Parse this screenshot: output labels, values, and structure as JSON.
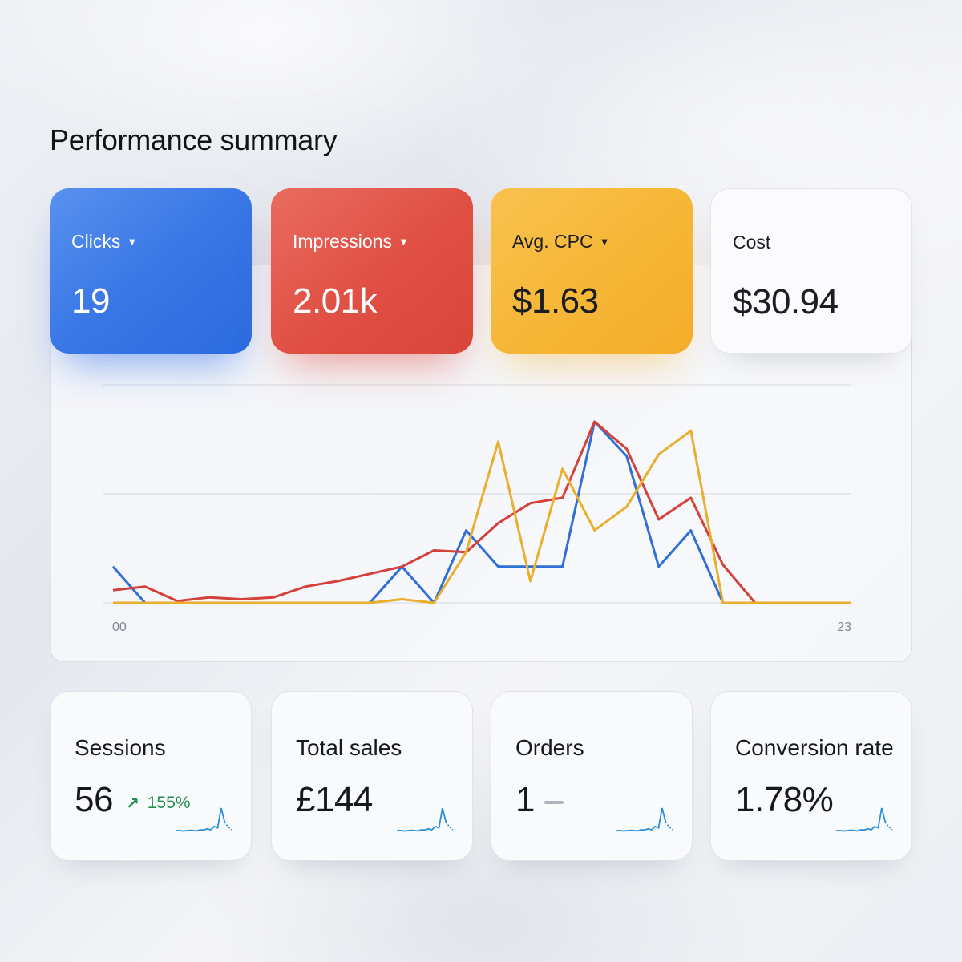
{
  "page": {
    "title": "Performance summary"
  },
  "metrics": [
    {
      "label": "Clicks",
      "value": "19",
      "color": "#3a77e6",
      "has_dropdown": true
    },
    {
      "label": "Impressions",
      "value": "2.01k",
      "color": "#e04f43",
      "has_dropdown": true
    },
    {
      "label": "Avg. CPC",
      "value": "$1.63",
      "color": "#f6b636",
      "has_dropdown": true
    },
    {
      "label": "Cost",
      "value": "$30.94",
      "has_dropdown": false
    }
  ],
  "summary": [
    {
      "label": "Sessions",
      "value": "56",
      "delta": "155%",
      "delta_direction": "up",
      "delta_color": "#1e8e4e"
    },
    {
      "label": "Total sales",
      "value": "£144"
    },
    {
      "label": "Orders",
      "value": "1",
      "delta_direction": "flat"
    },
    {
      "label": "Conversion rate",
      "value": "1.78%"
    }
  ],
  "chart_data": {
    "type": "line",
    "x": [
      0,
      1,
      2,
      3,
      4,
      5,
      6,
      7,
      8,
      9,
      10,
      11,
      12,
      13,
      14,
      15,
      16,
      17,
      18,
      19,
      20,
      21,
      22,
      23
    ],
    "x_tick_labels": [
      "00",
      "23"
    ],
    "ylim": [
      0,
      1
    ],
    "grid": true,
    "series": [
      {
        "color": "#2f6fd6",
        "values": [
          0.2,
          0.0,
          0.0,
          0.0,
          0.0,
          0.0,
          0.0,
          0.0,
          0.0,
          0.2,
          0.0,
          0.4,
          0.2,
          0.2,
          0.2,
          1.0,
          0.81,
          0.2,
          0.4,
          0.0,
          0.0,
          0.0,
          0.0,
          0.0
        ]
      },
      {
        "color": "#d4403a",
        "values": [
          0.07,
          0.09,
          0.01,
          0.03,
          0.02,
          0.03,
          0.09,
          0.12,
          0.16,
          0.2,
          0.29,
          0.28,
          0.44,
          0.55,
          0.58,
          1.0,
          0.85,
          0.46,
          0.58,
          0.21,
          0.0,
          0.0,
          0.0,
          0.0
        ]
      },
      {
        "color": "#e9ae2c",
        "values": [
          0.0,
          0.0,
          0.0,
          0.0,
          0.0,
          0.0,
          0.0,
          0.0,
          0.0,
          0.02,
          0.0,
          0.28,
          0.89,
          0.12,
          0.74,
          0.4,
          0.53,
          0.82,
          0.95,
          0.0,
          0.0,
          0.0,
          0.0,
          0.0
        ]
      }
    ]
  },
  "sparkline": {
    "color": "#2a8fd8",
    "values": [
      0.06,
      0.07,
      0.05,
      0.06,
      0.08,
      0.07,
      0.05,
      0.1,
      0.09,
      0.14,
      0.1,
      0.24,
      0.18,
      1.0,
      0.42,
      0.22,
      0.1
    ]
  }
}
